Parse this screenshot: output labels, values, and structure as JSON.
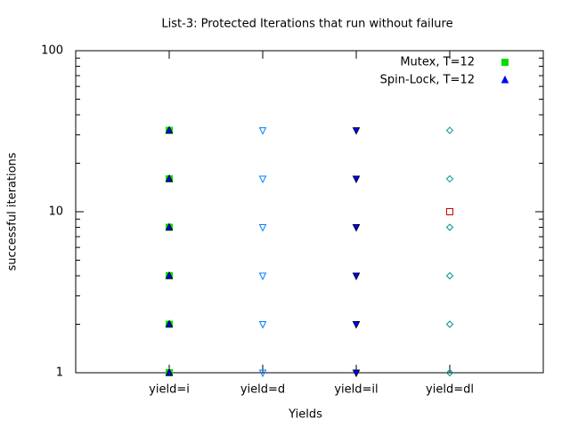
{
  "chart_data": {
    "type": "scatter",
    "title": "List-3: Protected Iterations that run without failure",
    "xlabel": "Yields",
    "ylabel": "successful iterations",
    "xlim": [
      0,
      5
    ],
    "ylim": [
      1,
      100
    ],
    "log_y": true,
    "legend": "top-right",
    "xticks": [
      {
        "value": 1,
        "label": "yield=i"
      },
      {
        "value": 2,
        "label": "yield=d"
      },
      {
        "value": 3,
        "label": "yield=il"
      },
      {
        "value": 4,
        "label": "yield=dl"
      }
    ],
    "yticks": [
      1,
      10,
      100
    ],
    "series": [
      {
        "name": "Mutex, T=12",
        "color": "#00dd00",
        "marker": "square-filled",
        "x": [
          1,
          1,
          1,
          1,
          1,
          1
        ],
        "values": [
          1,
          2,
          4,
          8,
          16,
          32
        ]
      },
      {
        "name": "Spin-Lock, T=12",
        "color": "#0000ff",
        "marker": "triangle-up-filled",
        "x": [
          1,
          1,
          1,
          1,
          1,
          1
        ],
        "values": [
          1,
          2,
          4,
          8,
          16,
          32
        ]
      },
      {
        "color": "#0080ff",
        "marker": "triangle-down-open",
        "x": [
          2,
          2,
          2,
          2,
          2,
          2
        ],
        "values": [
          1,
          2,
          4,
          8,
          16,
          32
        ]
      },
      {
        "color": "#0000ff",
        "marker": "triangle-down-filled",
        "x": [
          3,
          3,
          3,
          3,
          3,
          3
        ],
        "values": [
          1,
          2,
          4,
          8,
          16,
          32
        ]
      },
      {
        "color": "#009090",
        "marker": "diamond-open",
        "x": [
          4,
          4,
          4,
          4,
          4,
          4
        ],
        "values": [
          1,
          2,
          4,
          8,
          16,
          32
        ]
      },
      {
        "color": "#cc0000",
        "marker": "square-open",
        "x": [
          4
        ],
        "values": [
          10
        ]
      }
    ]
  }
}
